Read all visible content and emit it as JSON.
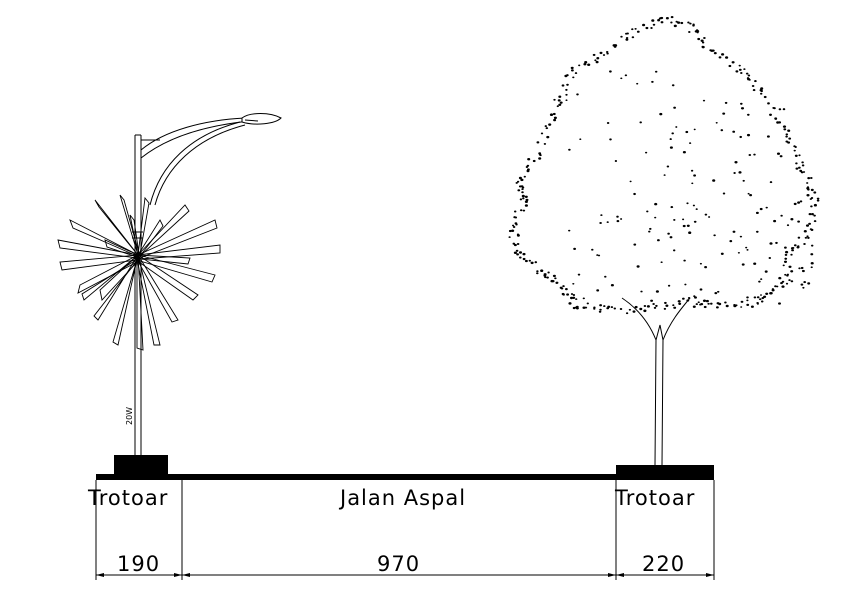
{
  "labels": {
    "left_sidewalk": "Trotoar",
    "road": "Jalan Aspal",
    "right_sidewalk": "Trotoar"
  },
  "dimensions": {
    "left": "190",
    "middle": "970",
    "right": "220"
  },
  "colors": {
    "ink": "#000000",
    "background": "#ffffff"
  },
  "icons": [
    "street-lamp-icon",
    "palm-tree-icon",
    "deciduous-tree-icon"
  ]
}
